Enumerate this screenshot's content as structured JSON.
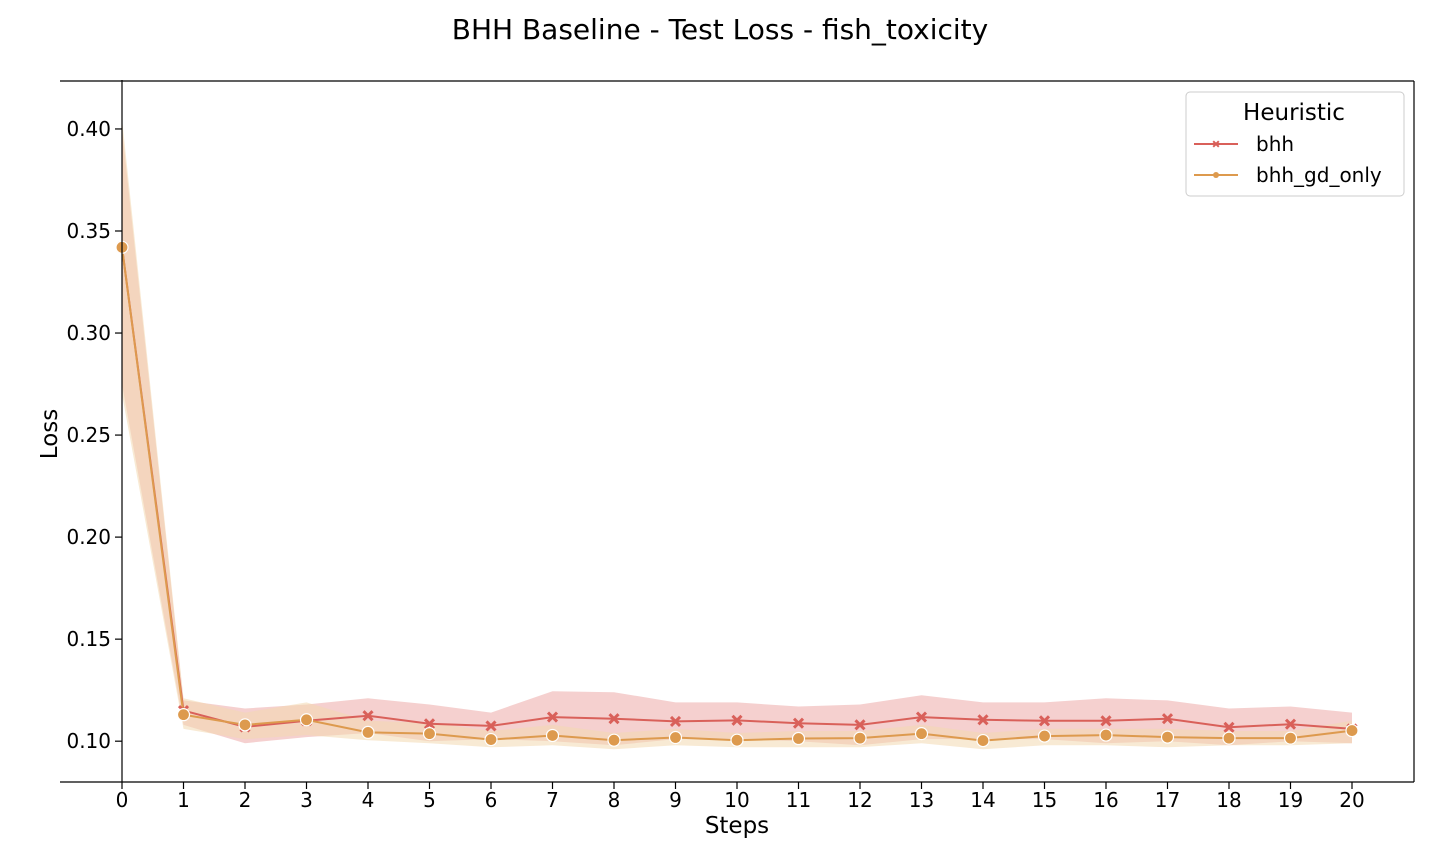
{
  "chart_data": {
    "type": "line",
    "title": "BHH Baseline - Test Loss - fish_toxicity",
    "xlabel": "Steps",
    "ylabel": "Loss",
    "x": [
      0,
      1,
      2,
      3,
      4,
      5,
      6,
      7,
      8,
      9,
      10,
      11,
      12,
      13,
      14,
      15,
      16,
      17,
      18,
      19,
      20
    ],
    "xlim": [
      -1,
      22.2
    ],
    "ylim": [
      0.08,
      0.4235
    ],
    "yticks": [
      0.1,
      0.15,
      0.2,
      0.25,
      0.3,
      0.35,
      0.4
    ],
    "ytick_labels": [
      "0.10",
      "0.15",
      "0.20",
      "0.25",
      "0.30",
      "0.35",
      "0.40"
    ],
    "xtick_labels": [
      "0",
      "1",
      "2",
      "3",
      "4",
      "5",
      "6",
      "7",
      "8",
      "9",
      "10",
      "11",
      "12",
      "13",
      "14",
      "15",
      "16",
      "17",
      "18",
      "19",
      "20"
    ],
    "grid": false,
    "legend": {
      "title": "Heuristic",
      "placement": "top-right"
    },
    "series": [
      {
        "name": "bhh",
        "color": "#d9605a",
        "band_color": "#ecaaa8",
        "marker": "x",
        "values": [
          0.342,
          0.115,
          0.107,
          0.11,
          0.1125,
          0.1085,
          0.1075,
          0.1118,
          0.111,
          0.1097,
          0.1102,
          0.1088,
          0.108,
          0.1118,
          0.1105,
          0.11,
          0.11,
          0.111,
          0.1068,
          0.1083,
          0.106
        ],
        "upper": [
          0.4,
          0.12,
          0.116,
          0.118,
          0.121,
          0.118,
          0.114,
          0.1245,
          0.124,
          0.119,
          0.119,
          0.117,
          0.118,
          0.1225,
          0.119,
          0.119,
          0.121,
          0.12,
          0.116,
          0.117,
          0.114
        ],
        "lower": [
          0.275,
          0.108,
          0.099,
          0.102,
          0.104,
          0.1,
          0.101,
          0.1,
          0.098,
          0.101,
          0.101,
          0.1,
          0.098,
          0.101,
          0.101,
          0.101,
          0.099,
          0.1,
          0.098,
          0.1,
          0.099
        ]
      },
      {
        "name": "bhh_gd_only",
        "color": "#dd9a4e",
        "band_color": "#f3d9b1",
        "marker": "o",
        "values": [
          0.342,
          0.113,
          0.108,
          0.1105,
          0.1043,
          0.1037,
          0.1008,
          0.1028,
          0.1005,
          0.1018,
          0.1005,
          0.1013,
          0.1015,
          0.1037,
          0.1003,
          0.1025,
          0.103,
          0.102,
          0.1015,
          0.1015,
          0.1052
        ],
        "upper": [
          0.405,
          0.121,
          0.114,
          0.119,
          0.11,
          0.109,
          0.105,
          0.108,
          0.104,
          0.106,
          0.104,
          0.105,
          0.105,
          0.108,
          0.104,
          0.106,
          0.106,
          0.106,
          0.105,
          0.105,
          0.11
        ],
        "lower": [
          0.27,
          0.106,
          0.101,
          0.103,
          0.1005,
          0.099,
          0.097,
          0.098,
          0.096,
          0.098,
          0.097,
          0.097,
          0.097,
          0.099,
          0.096,
          0.098,
          0.098,
          0.097,
          0.098,
          0.098,
          0.099
        ]
      }
    ]
  }
}
